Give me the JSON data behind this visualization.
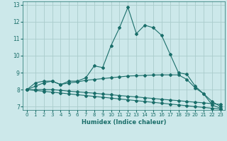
{
  "xlabel": "Humidex (Indice chaleur)",
  "ylabel": "",
  "bg_color": "#cce8ea",
  "grid_color": "#aacccc",
  "line_color": "#1a6e6a",
  "xlim": [
    -0.5,
    23.5
  ],
  "ylim": [
    6.8,
    13.2
  ],
  "xticks": [
    0,
    1,
    2,
    3,
    4,
    5,
    6,
    7,
    8,
    9,
    10,
    11,
    12,
    13,
    14,
    15,
    16,
    17,
    18,
    19,
    20,
    21,
    22,
    23
  ],
  "yticks": [
    7,
    8,
    9,
    10,
    11,
    12,
    13
  ],
  "series": [
    {
      "x": [
        0,
        1,
        2,
        3,
        4,
        5,
        6,
        7,
        8,
        9,
        10,
        11,
        12,
        13,
        14,
        15,
        16,
        17,
        18,
        19,
        20,
        21,
        22,
        23
      ],
      "y": [
        8.0,
        8.4,
        8.5,
        8.5,
        8.3,
        8.5,
        8.5,
        8.7,
        9.4,
        9.3,
        10.6,
        11.65,
        12.85,
        11.3,
        11.8,
        11.65,
        11.2,
        10.1,
        9.0,
        8.9,
        8.2,
        7.75,
        7.1,
        6.9
      ]
    },
    {
      "x": [
        0,
        1,
        2,
        3,
        4,
        5,
        6,
        7,
        8,
        9,
        10,
        11,
        12,
        13,
        14,
        15,
        16,
        17,
        18,
        19,
        20,
        21,
        22,
        23
      ],
      "y": [
        8.0,
        8.2,
        8.4,
        8.5,
        8.3,
        8.4,
        8.45,
        8.55,
        8.6,
        8.65,
        8.7,
        8.75,
        8.8,
        8.82,
        8.84,
        8.86,
        8.87,
        8.87,
        8.87,
        8.6,
        8.1,
        7.75,
        7.3,
        7.0
      ]
    },
    {
      "x": [
        0,
        1,
        2,
        3,
        4,
        5,
        6,
        7,
        8,
        9,
        10,
        11,
        12,
        13,
        14,
        15,
        16,
        17,
        18,
        19,
        20,
        21,
        22,
        23
      ],
      "y": [
        8.0,
        8.0,
        8.0,
        8.0,
        7.96,
        7.91,
        7.87,
        7.83,
        7.79,
        7.74,
        7.7,
        7.65,
        7.61,
        7.57,
        7.52,
        7.48,
        7.43,
        7.39,
        7.35,
        7.3,
        7.26,
        7.22,
        7.17,
        7.13
      ]
    },
    {
      "x": [
        0,
        1,
        2,
        3,
        4,
        5,
        6,
        7,
        8,
        9,
        10,
        11,
        12,
        13,
        14,
        15,
        16,
        17,
        18,
        19,
        20,
        21,
        22,
        23
      ],
      "y": [
        8.0,
        7.95,
        7.9,
        7.85,
        7.8,
        7.75,
        7.7,
        7.65,
        7.6,
        7.55,
        7.5,
        7.45,
        7.4,
        7.35,
        7.3,
        7.25,
        7.2,
        7.15,
        7.1,
        7.05,
        7.0,
        6.95,
        6.9,
        6.85
      ]
    }
  ]
}
